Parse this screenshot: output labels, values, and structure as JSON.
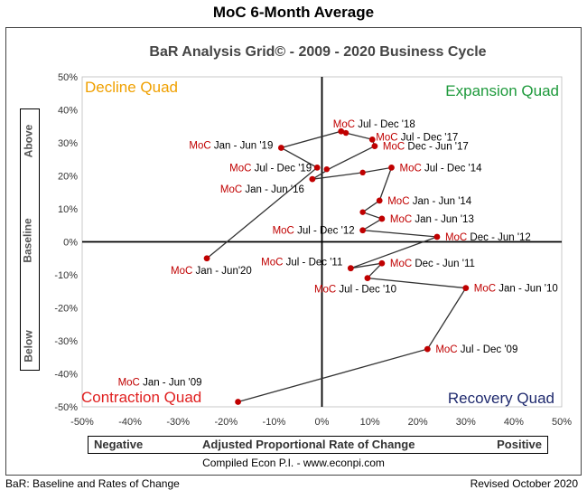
{
  "header": {
    "title": "MoC 6-Month Average"
  },
  "chart_data": {
    "type": "scatter",
    "title": "BaR Analysis Grid© - 2009 - 2020 Business Cycle",
    "xlabel": "Adjusted Proportional Rate of Change",
    "xlabel_left": "Negative",
    "xlabel_right": "Positive",
    "ylabel_top": "Above",
    "ylabel_mid": "Baseline",
    "ylabel_bottom": "Below",
    "xlim": [
      -50,
      50
    ],
    "ylim": [
      -50,
      50
    ],
    "xticks": [
      -50,
      -40,
      -30,
      -20,
      -10,
      0,
      10,
      20,
      30,
      40,
      50
    ],
    "yticks": [
      -50,
      -40,
      -30,
      -20,
      -10,
      0,
      10,
      20,
      30,
      40,
      50
    ],
    "tick_suffix": "%",
    "quadrants": [
      {
        "name": "Decline Quad",
        "position": "top-left",
        "color": "#F0A000"
      },
      {
        "name": "Expansion Quad",
        "position": "top-right",
        "color": "#1E9A3C"
      },
      {
        "name": "Contraction Quad",
        "position": "bottom-left",
        "color": "#E02020"
      },
      {
        "name": "Recovery Quad",
        "position": "bottom-right",
        "color": "#1F2A6E"
      }
    ],
    "point_color": "#C00000",
    "line_color": "#333333",
    "labelled_points": [
      {
        "x": -17.5,
        "y": -48.5,
        "prefix": "MoC",
        "label": "Jan - Jun '09"
      },
      {
        "x": 22.0,
        "y": -32.5,
        "prefix": "MoC",
        "label": "Jul - Dec '09"
      },
      {
        "x": 30.0,
        "y": -14.0,
        "prefix": "MoC",
        "label": "Jan - Jun '10"
      },
      {
        "x": 9.5,
        "y": -11.0,
        "prefix": "MoC",
        "label": "Jul - Dec '10"
      },
      {
        "x": 12.5,
        "y": -6.5,
        "prefix": "MoC",
        "label": "Dec - Jun '11"
      },
      {
        "x": 6.0,
        "y": -8.0,
        "prefix": "MoC",
        "label": "Jul - Dec '11"
      },
      {
        "x": 24.0,
        "y": 1.5,
        "prefix": "MoC",
        "label": "Dec - Jun '12"
      },
      {
        "x": 8.5,
        "y": 3.5,
        "prefix": "MoC",
        "label": "Jul - Dec '12"
      },
      {
        "x": 12.5,
        "y": 7.0,
        "prefix": "MoC",
        "label": "Jan - Jun '13"
      },
      {
        "x": 12.0,
        "y": 12.5,
        "prefix": "MoC",
        "label": "Jan - Jun '14"
      },
      {
        "x": 14.5,
        "y": 22.5,
        "prefix": "MoC",
        "label": "Jul - Dec '14"
      },
      {
        "x": -2.0,
        "y": 19.0,
        "prefix": "MoC",
        "label": "Jan - Jun '16"
      },
      {
        "x": 11.0,
        "y": 29.0,
        "prefix": "MoC",
        "label": "Dec - Jun '17"
      },
      {
        "x": 10.5,
        "y": 31.0,
        "prefix": "MoC",
        "label": "Jul - Dec '17"
      },
      {
        "x": 4.0,
        "y": 33.5,
        "prefix": "MoC",
        "label": "Jul - Dec '18"
      },
      {
        "x": -8.5,
        "y": 28.5,
        "prefix": "MoC",
        "label": "Jan - Jun '19"
      },
      {
        "x": -1.0,
        "y": 22.5,
        "prefix": "MoC",
        "label": "Jul - Dec '19"
      },
      {
        "x": -24.0,
        "y": -5.0,
        "prefix": "MoC",
        "label": "Jan - Jun'20"
      }
    ],
    "path": [
      [
        -17.5,
        -48.5
      ],
      [
        22.0,
        -32.5
      ],
      [
        30.0,
        -14.0
      ],
      [
        9.5,
        -11.0
      ],
      [
        12.5,
        -6.5
      ],
      [
        6.0,
        -8.0
      ],
      [
        24.0,
        1.5
      ],
      [
        8.5,
        3.5
      ],
      [
        12.5,
        7.0
      ],
      [
        8.5,
        9.0
      ],
      [
        12.0,
        12.5
      ],
      [
        14.5,
        22.5
      ],
      [
        8.5,
        21.0
      ],
      [
        -2.0,
        19.0
      ],
      [
        2.0,
        22.5
      ],
      [
        11.0,
        29.0
      ],
      [
        10.5,
        31.0
      ],
      [
        5.0,
        33.0
      ],
      [
        4.0,
        33.5
      ],
      [
        -8.5,
        28.5
      ],
      [
        -1.0,
        22.5
      ],
      [
        -24.0,
        -5.0
      ]
    ],
    "extra_points": [
      [
        1.0,
        22.0
      ],
      [
        8.5,
        9.0
      ],
      [
        8.5,
        21.0
      ],
      [
        5.0,
        33.0
      ]
    ]
  },
  "footer": {
    "compiled": "Compiled Econ P.I. - www.econpi.com",
    "left": "BaR: Baseline and Rates of Change",
    "right": "Revised October 2020"
  }
}
